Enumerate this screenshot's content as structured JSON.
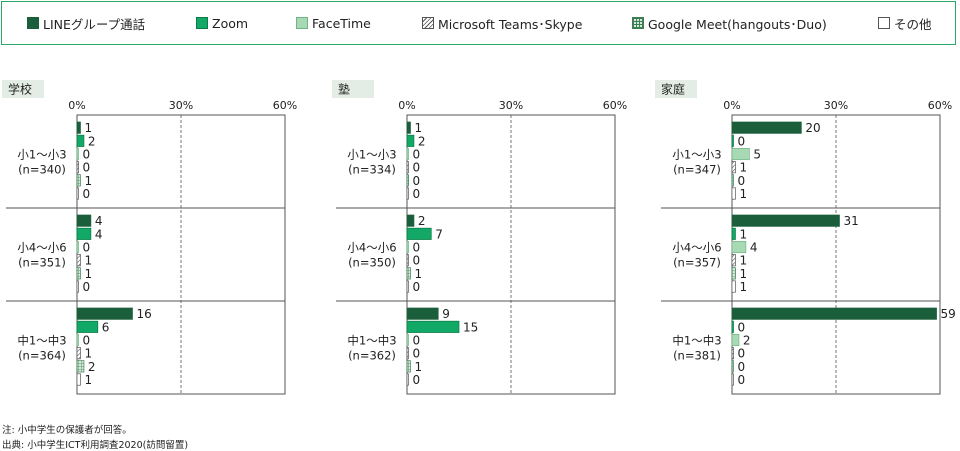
{
  "legend": {
    "items": [
      {
        "label": "LINEグループ通話",
        "color": "#1b5e3b",
        "pattern": "solid"
      },
      {
        "label": "Zoom",
        "color": "#12a865",
        "pattern": "solid"
      },
      {
        "label": "FaceTime",
        "color": "#a9d8b4",
        "pattern": "solid"
      },
      {
        "label": "Microsoft Teams･Skype",
        "color": "#ffffff",
        "pattern": "diagonal"
      },
      {
        "label": "Google Meet(hangouts･Duo)",
        "color": "#d5ead9",
        "pattern": "grid"
      },
      {
        "label": "その他",
        "color": "#ffffff",
        "pattern": "solid"
      }
    ]
  },
  "notes": {
    "line1": "注: 小中学生の保護者が回答。",
    "line2": "出典: 小中学生ICT利用調査2020(訪問留置)"
  },
  "chart_data": [
    {
      "type": "bar",
      "title": "学校",
      "xlim": [
        0,
        60
      ],
      "xticks": [
        "0%",
        "30%",
        "60%"
      ],
      "grid": "dashed at 30%",
      "series_names": [
        "LINEグループ通話",
        "Zoom",
        "FaceTime",
        "Microsoft Teams･Skype",
        "Google Meet(hangouts･Duo)",
        "その他"
      ],
      "groups": [
        {
          "label": [
            "小1～小3",
            "(n=340)"
          ],
          "values": [
            1,
            2,
            0,
            0,
            1,
            0
          ]
        },
        {
          "label": [
            "小4～小6",
            "(n=351)"
          ],
          "values": [
            4,
            4,
            0,
            1,
            1,
            0
          ]
        },
        {
          "label": [
            "中1～中3",
            "(n=364)"
          ],
          "values": [
            16,
            6,
            0,
            1,
            2,
            1
          ]
        }
      ]
    },
    {
      "type": "bar",
      "title": "塾",
      "xlim": [
        0,
        60
      ],
      "xticks": [
        "0%",
        "30%",
        "60%"
      ],
      "grid": "dashed at 30%",
      "series_names": [
        "LINEグループ通話",
        "Zoom",
        "FaceTime",
        "Microsoft Teams･Skype",
        "Google Meet(hangouts･Duo)",
        "その他"
      ],
      "groups": [
        {
          "label": [
            "小1～小3",
            "(n=334)"
          ],
          "values": [
            1,
            2,
            0,
            0,
            0,
            0
          ]
        },
        {
          "label": [
            "小4～小6",
            "(n=350)"
          ],
          "values": [
            2,
            7,
            0,
            0,
            1,
            0
          ]
        },
        {
          "label": [
            "中1～中3",
            "(n=362)"
          ],
          "values": [
            9,
            15,
            0,
            0,
            1,
            0
          ]
        }
      ]
    },
    {
      "type": "bar",
      "title": "家庭",
      "xlim": [
        0,
        60
      ],
      "xticks": [
        "0%",
        "30%",
        "60%"
      ],
      "grid": "dashed at 30%",
      "series_names": [
        "LINEグループ通話",
        "Zoom",
        "FaceTime",
        "Microsoft Teams･Skype",
        "Google Meet(hangouts･Duo)",
        "その他"
      ],
      "groups": [
        {
          "label": [
            "小1～小3",
            "(n=347)"
          ],
          "values": [
            20,
            0,
            5,
            1,
            0,
            1
          ]
        },
        {
          "label": [
            "小4～小6",
            "(n=357)"
          ],
          "values": [
            31,
            1,
            4,
            1,
            1,
            1
          ]
        },
        {
          "label": [
            "中1～中3",
            "(n=381)"
          ],
          "values": [
            59,
            0,
            2,
            0,
            0,
            0
          ]
        }
      ]
    }
  ]
}
